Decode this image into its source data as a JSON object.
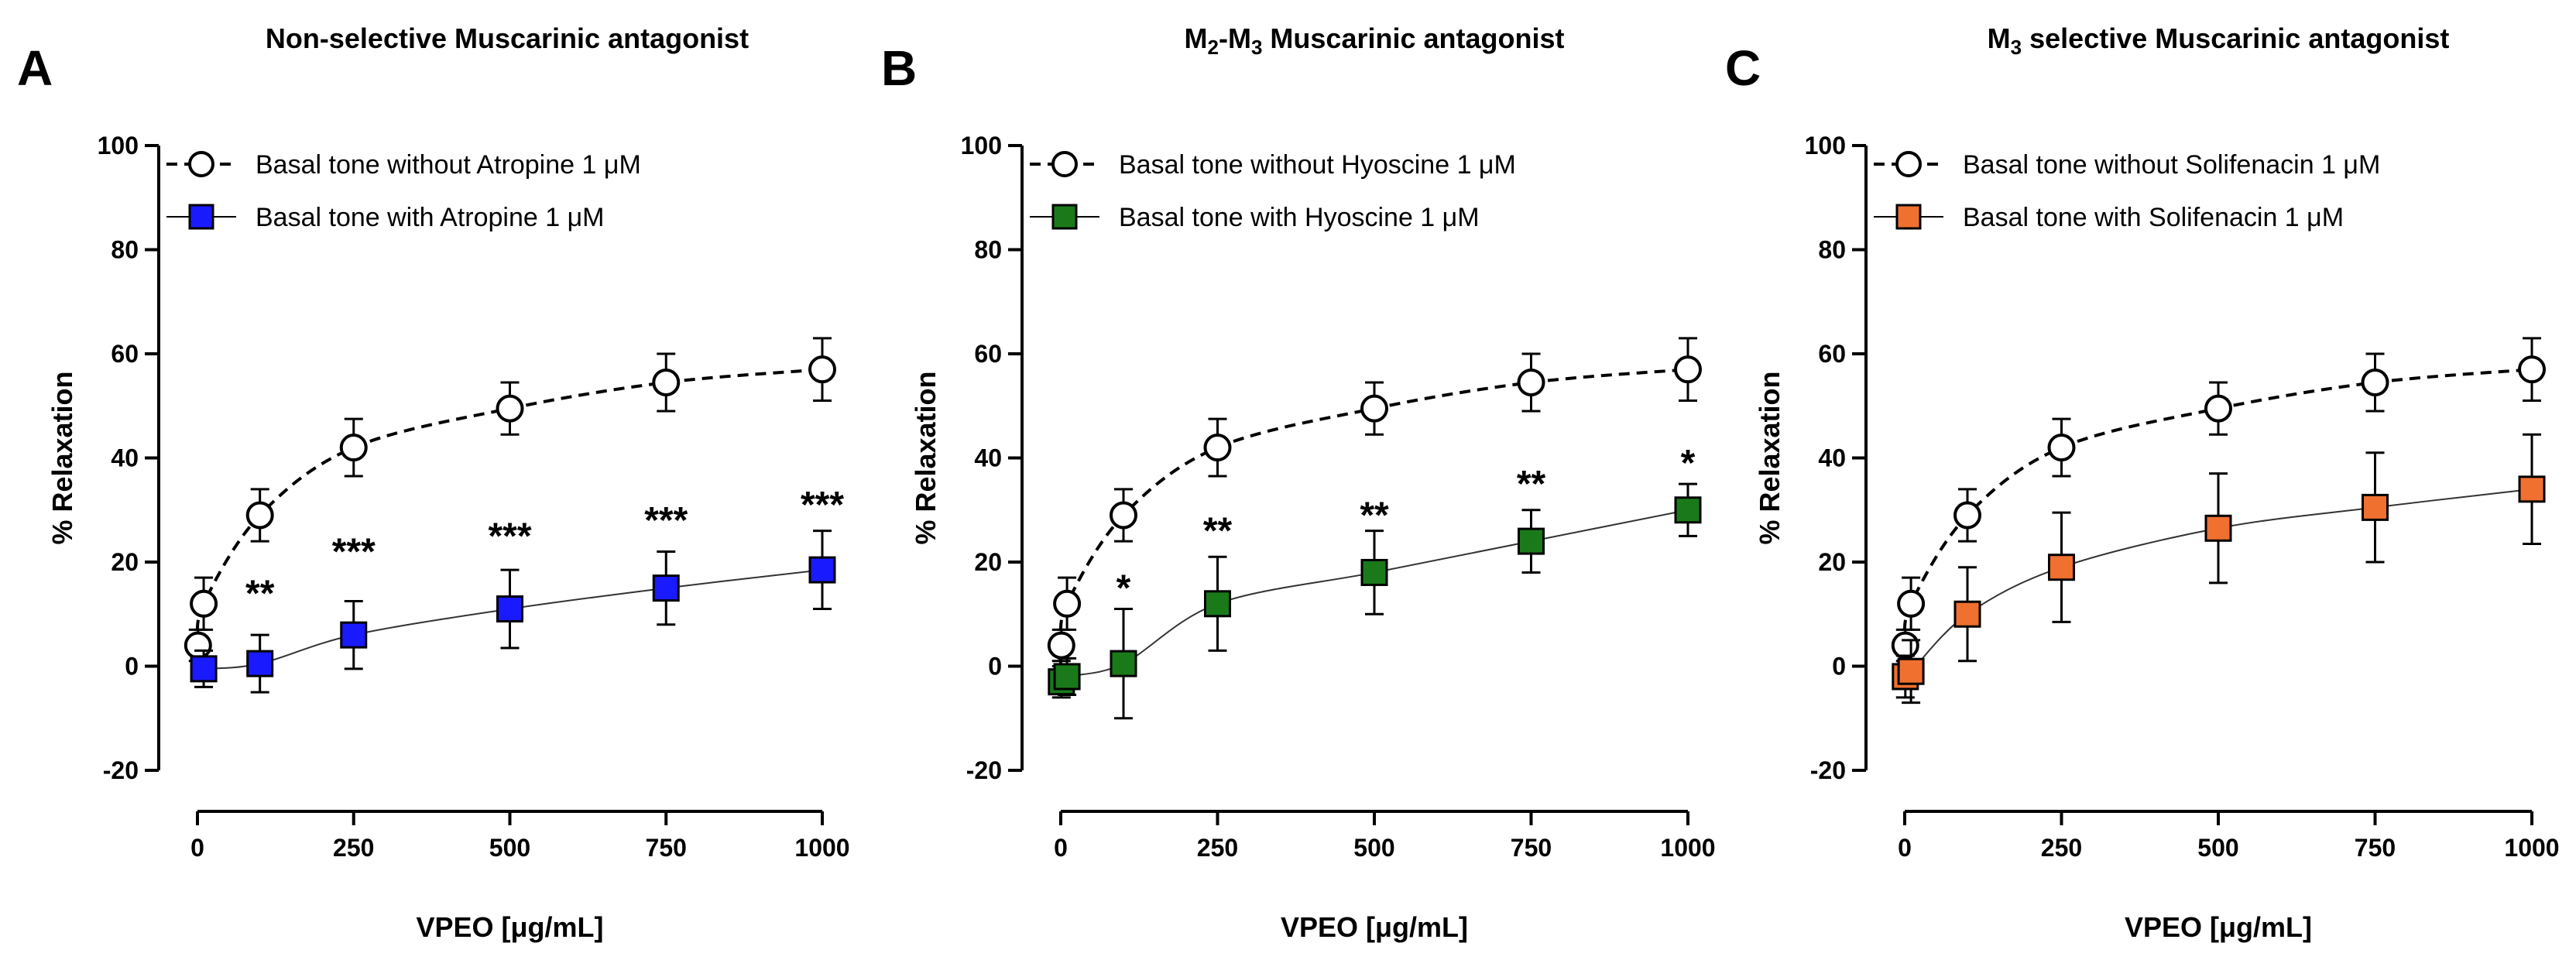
{
  "chart_data": [
    {
      "type": "line",
      "panel_letter": "A",
      "title": "Non-selective Muscarinic antagonist",
      "xlabel": "VPEO [μg/mL]",
      "ylabel": "% Relaxation",
      "xlim": [
        0,
        1000
      ],
      "ylim": [
        -20,
        100
      ],
      "xticks": [
        0,
        250,
        500,
        750,
        1000
      ],
      "yticks": [
        -20,
        0,
        20,
        40,
        60,
        80,
        100
      ],
      "legend_position": "top-left",
      "series": [
        {
          "name": "Basal tone without Atropine 1 μM",
          "marker": "circle",
          "color": "#ffffff",
          "line": "dashed",
          "x": [
            1,
            10,
            100,
            250,
            500,
            750,
            1000
          ],
          "y": [
            4,
            12,
            29,
            42,
            49.5,
            54.5,
            57
          ],
          "err": [
            3,
            5,
            5,
            5.5,
            5,
            5.5,
            6
          ],
          "fit": [
            0,
            3,
            12,
            29,
            42.5,
            49.5,
            54.5,
            57
          ]
        },
        {
          "name": "Basal tone with Atropine 1 μM",
          "marker": "square",
          "color": "#1a1aff",
          "line": "solid",
          "x": [
            10,
            100,
            250,
            500,
            750,
            1000
          ],
          "y": [
            -0.5,
            0.5,
            6,
            11,
            15,
            18.5
          ],
          "err": [
            3.5,
            5.5,
            6.5,
            7.5,
            7,
            7.5
          ]
        }
      ],
      "significance": [
        "**",
        "***",
        "***",
        "***",
        "***"
      ]
    },
    {
      "type": "line",
      "panel_letter": "B",
      "title_main": "M",
      "title_sub1": "2",
      "title_mid": "-M",
      "title_sub2": "3",
      "title_rest": " Muscarinic antagonist",
      "xlabel": "VPEO [μg/mL]",
      "ylabel": "% Relaxation",
      "xlim": [
        0,
        1000
      ],
      "ylim": [
        -20,
        100
      ],
      "xticks": [
        0,
        250,
        500,
        750,
        1000
      ],
      "yticks": [
        -20,
        0,
        20,
        40,
        60,
        80,
        100
      ],
      "legend_position": "top-left",
      "series": [
        {
          "name": "Basal tone without Hyoscine 1 μM",
          "marker": "circle",
          "color": "#ffffff",
          "line": "dashed",
          "x": [
            1,
            10,
            100,
            250,
            500,
            750,
            1000
          ],
          "y": [
            4,
            12,
            29,
            42,
            49.5,
            54.5,
            57
          ],
          "err": [
            3,
            5,
            5,
            5.5,
            5,
            5.5,
            6
          ]
        },
        {
          "name": "Basal tone with Hyoscine 1 μM",
          "marker": "square",
          "color": "#1a7a1a",
          "line": "solid",
          "x": [
            1,
            10,
            100,
            250,
            500,
            750,
            1000
          ],
          "y": [
            -3,
            -2,
            0.5,
            12,
            18,
            24,
            30
          ],
          "err": [
            3,
            3.5,
            10.5,
            9,
            8,
            6,
            5
          ]
        }
      ],
      "significance": [
        "*",
        "**",
        "**",
        "**",
        "*"
      ]
    },
    {
      "type": "line",
      "panel_letter": "C",
      "title_main": "M",
      "title_sub1": "3",
      "title_rest": " selective Muscarinic antagonist",
      "xlabel": "VPEO [μg/mL]",
      "ylabel": "% Relaxation",
      "xlim": [
        0,
        1000
      ],
      "ylim": [
        -20,
        100
      ],
      "xticks": [
        0,
        250,
        500,
        750,
        1000
      ],
      "yticks": [
        -20,
        0,
        20,
        40,
        60,
        80,
        100
      ],
      "legend_position": "top-left",
      "series": [
        {
          "name": "Basal tone without Solifenacin 1 μM",
          "marker": "circle",
          "color": "#ffffff",
          "line": "dashed",
          "x": [
            1,
            10,
            100,
            250,
            500,
            750,
            1000
          ],
          "y": [
            4,
            12,
            29,
            42,
            49.5,
            54.5,
            57
          ],
          "err": [
            3,
            5,
            5,
            5.5,
            5,
            5.5,
            6
          ]
        },
        {
          "name": "Basal tone with Solifenacin 1 μM",
          "marker": "square",
          "color": "#f07030",
          "line": "solid",
          "x": [
            1,
            10,
            100,
            250,
            500,
            750,
            1000
          ],
          "y": [
            -2,
            -1,
            10,
            19,
            26.5,
            30.5,
            34
          ],
          "err": [
            4,
            6,
            9,
            10.5,
            10.5,
            10.5,
            10.5
          ]
        }
      ],
      "significance": []
    }
  ]
}
